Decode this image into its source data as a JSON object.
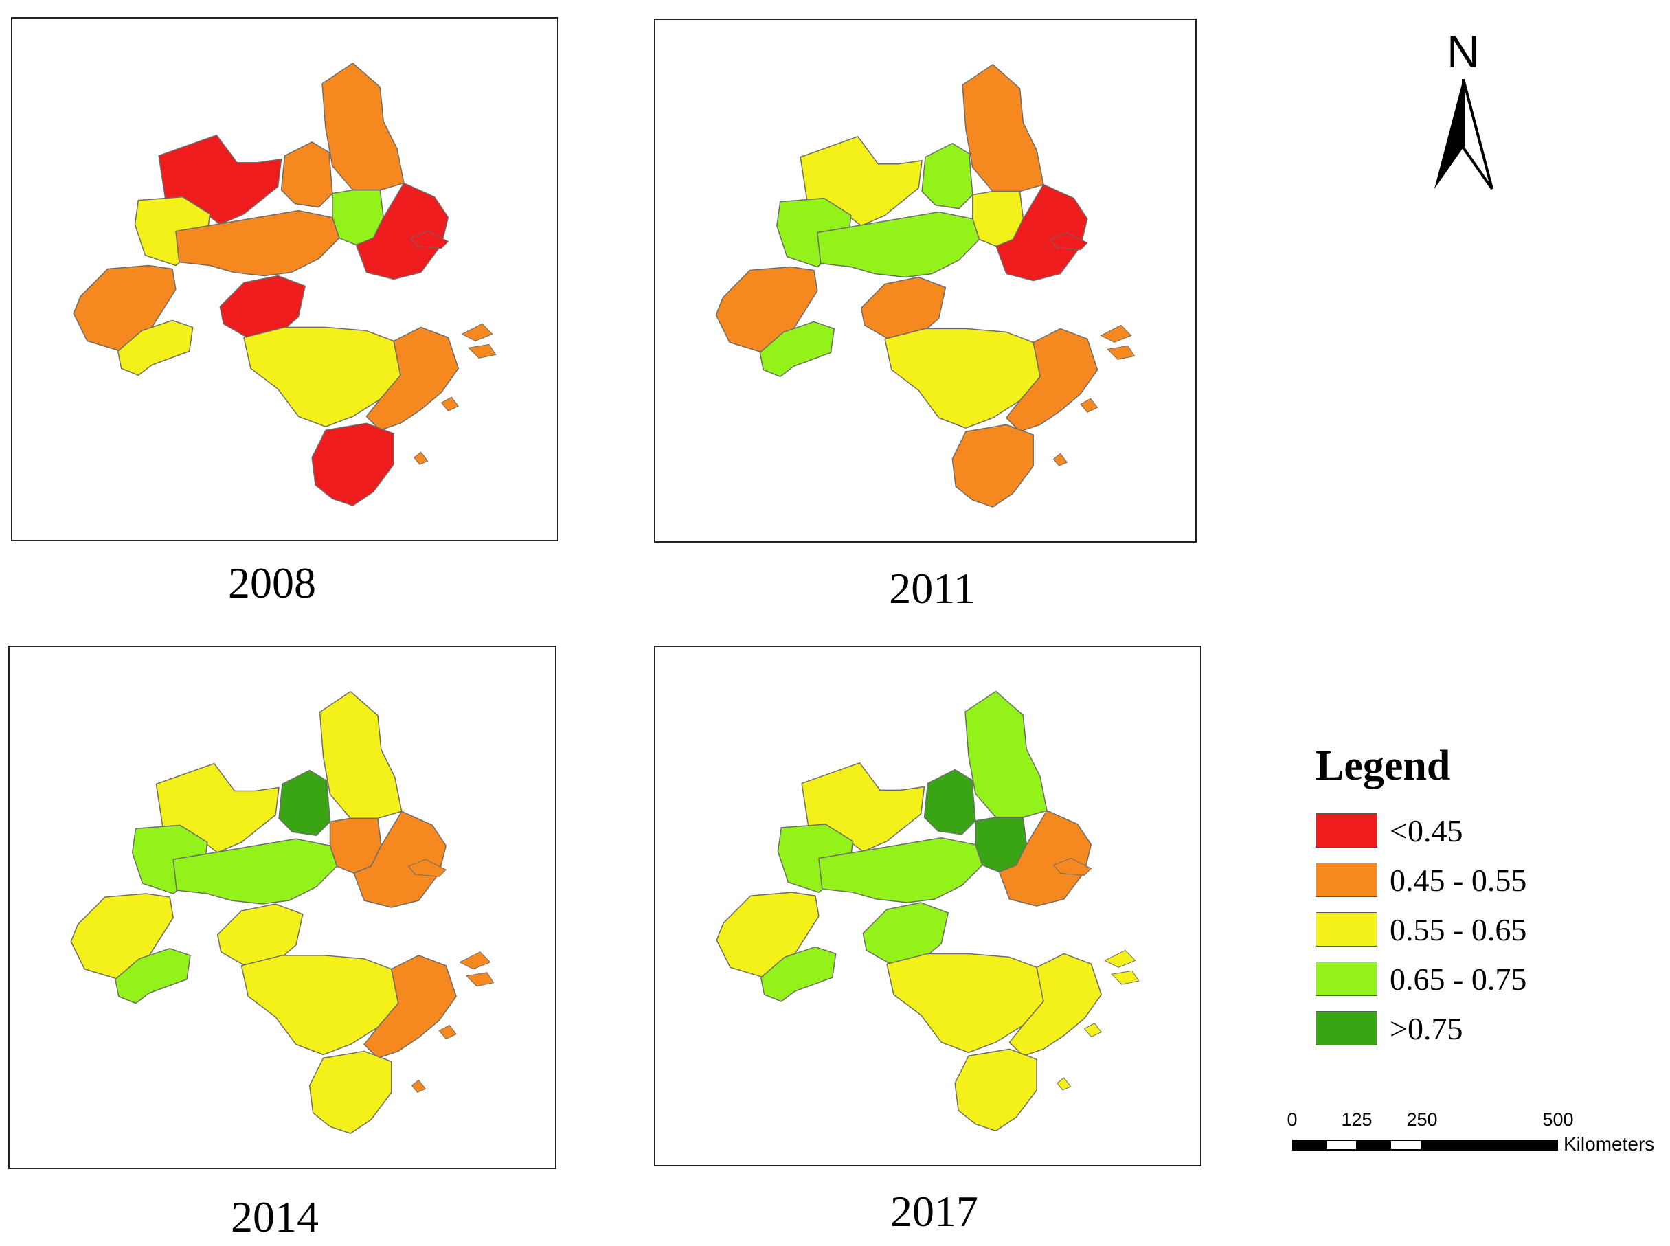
{
  "panels": [
    {
      "year": "2008",
      "colors": {
        "north_tip": "orange",
        "north_west": "red",
        "north_mid": "orange",
        "west_upper": "yellow",
        "west": "orange",
        "west_lower": "yellow",
        "center": "red",
        "center_north": "lime",
        "center_band": "orange",
        "east": "red",
        "south_main": "yellow",
        "south_coast": "orange",
        "south_tip": "red"
      }
    },
    {
      "year": "2011",
      "colors": {
        "north_tip": "orange",
        "north_west": "yellow",
        "north_mid": "lime",
        "west_upper": "lime",
        "west": "orange",
        "west_lower": "lime",
        "center": "orange",
        "center_north": "yellow",
        "center_band": "lime",
        "east": "red",
        "south_main": "yellow",
        "south_coast": "orange",
        "south_tip": "orange"
      }
    },
    {
      "year": "2014",
      "colors": {
        "north_tip": "yellow",
        "north_west": "yellow",
        "north_mid": "darkgreen",
        "west_upper": "lime",
        "west": "yellow",
        "west_lower": "lime",
        "center": "yellow",
        "center_north": "orange",
        "center_band": "lime",
        "east": "orange",
        "south_main": "yellow",
        "south_coast": "orange",
        "south_tip": "yellow"
      }
    },
    {
      "year": "2017",
      "colors": {
        "north_tip": "lime",
        "north_west": "yellow",
        "north_mid": "darkgreen",
        "west_upper": "lime",
        "west": "yellow",
        "west_lower": "lime",
        "center": "lime",
        "center_north": "darkgreen",
        "center_band": "lime",
        "east": "orange",
        "south_main": "yellow",
        "south_coast": "yellow",
        "south_tip": "yellow"
      }
    }
  ],
  "palette": {
    "red": "#ee1c1c",
    "orange": "#f5891f",
    "yellow": "#f4f11a",
    "lime": "#93f21a",
    "darkgreen": "#3aa514"
  },
  "north_arrow": {
    "label": "N"
  },
  "legend": {
    "title": "Legend",
    "items": [
      {
        "label": "<0.45",
        "color": "#ee1c1c"
      },
      {
        "label": "0.45 - 0.55",
        "color": "#f5891f"
      },
      {
        "label": "0.55 - 0.65",
        "color": "#f4f11a"
      },
      {
        "label": "0.65 - 0.75",
        "color": "#93f21a"
      },
      {
        "label": ">0.75",
        "color": "#3aa514"
      }
    ]
  },
  "scale_bar": {
    "ticks": [
      "0",
      "125",
      "250",
      "500"
    ],
    "unit": "Kilometers"
  }
}
